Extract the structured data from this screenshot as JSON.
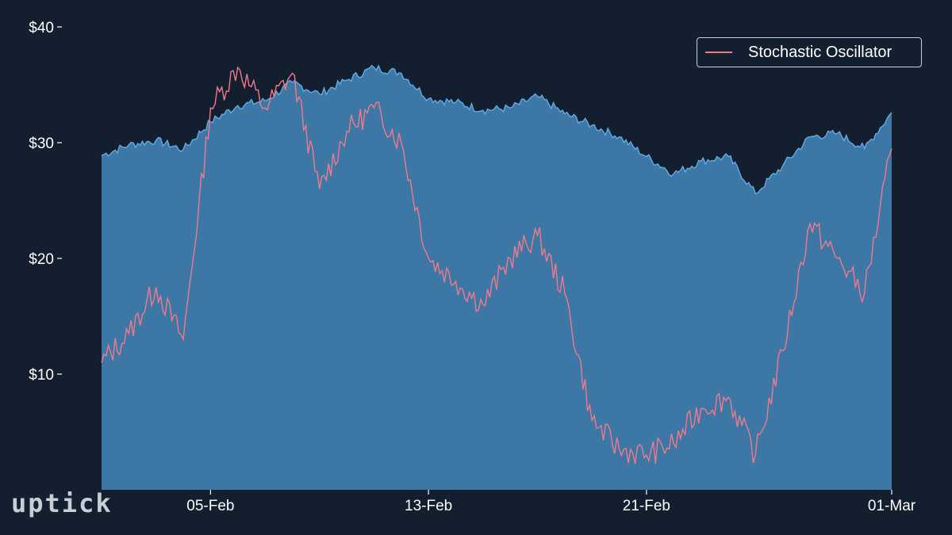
{
  "logo": "uptick",
  "colors": {
    "background": "#131e2e",
    "price_fill": "#3d77a6",
    "price_line": "#5fa8e0",
    "oscillator": "#f07a8a",
    "text": "#ffffff"
  },
  "chart_data": {
    "type": "area",
    "title": "",
    "xlabel": "",
    "ylabel": "",
    "y_ticks": [
      "$10",
      "$20",
      "$30",
      "$40"
    ],
    "y_tick_values": [
      10,
      20,
      30,
      40
    ],
    "x_ticks": [
      "05-Feb",
      "13-Feb",
      "21-Feb",
      "01-Mar"
    ],
    "x_tick_dates": [
      "2024-02-05",
      "2024-02-13",
      "2024-02-21",
      "2024-03-01"
    ],
    "ylim": [
      0,
      40
    ],
    "xlim": [
      "2024-02-01",
      "2024-03-01"
    ],
    "legend": {
      "position": "top-right",
      "entries": [
        "Stochastic Oscillator"
      ]
    },
    "x": [
      "2024-02-01",
      "2024-02-02",
      "2024-02-03",
      "2024-02-04",
      "2024-02-05",
      "2024-02-06",
      "2024-02-07",
      "2024-02-08",
      "2024-02-09",
      "2024-02-10",
      "2024-02-11",
      "2024-02-12",
      "2024-02-13",
      "2024-02-14",
      "2024-02-15",
      "2024-02-16",
      "2024-02-17",
      "2024-02-18",
      "2024-02-19",
      "2024-02-20",
      "2024-02-21",
      "2024-02-22",
      "2024-02-23",
      "2024-02-24",
      "2024-02-25",
      "2024-02-26",
      "2024-02-27",
      "2024-02-28",
      "2024-02-29",
      "2024-03-01"
    ],
    "series": [
      {
        "type": "area",
        "values": [
          28.9,
          29.8,
          30.2,
          29.4,
          31.8,
          33.2,
          33.6,
          35.2,
          34.2,
          35.4,
          36.5,
          36.0,
          33.8,
          33.5,
          32.8,
          33.0,
          34.0,
          32.5,
          31.5,
          30.5,
          28.8,
          27.3,
          28.4,
          28.8,
          25.6,
          28.0,
          30.5,
          30.8,
          29.5,
          32.6
        ]
      },
      {
        "name": "Stochastic Oscillator",
        "type": "line",
        "values": [
          11.0,
          13.5,
          17.5,
          13.0,
          33.0,
          36.5,
          33.0,
          36.0,
          26.0,
          31.0,
          33.0,
          30.0,
          20.0,
          18.0,
          16.0,
          20.0,
          22.0,
          17.0,
          6.0,
          3.5,
          3.0,
          4.0,
          7.0,
          8.0,
          3.0,
          12.0,
          23.0,
          20.0,
          17.0,
          29.5
        ]
      }
    ]
  }
}
